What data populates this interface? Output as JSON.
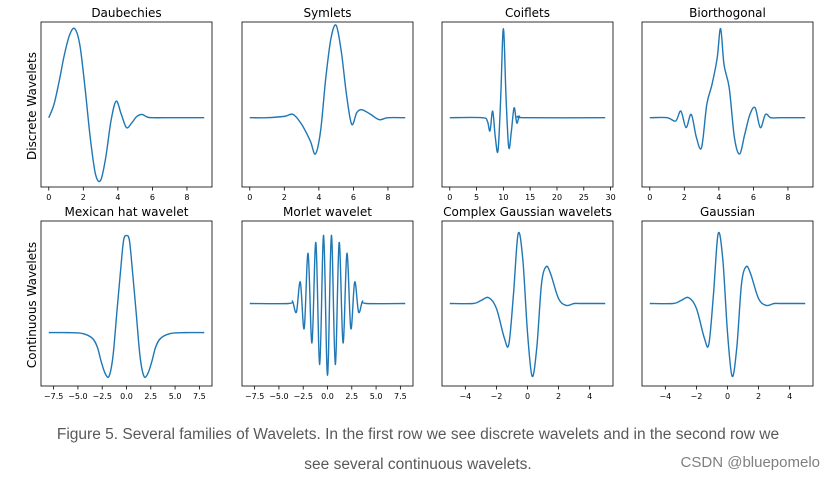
{
  "row_labels": [
    "Discrete Wavelets",
    "Continuous Wavelets"
  ],
  "caption": {
    "line1": "Figure 5. Several families of Wavelets. In the first row we see discrete wavelets and in the second row we",
    "line2": "see several continuous wavelets."
  },
  "watermark": "CSDN @bluepomelo",
  "colors": {
    "line": "#1f77b4",
    "axes": "#000000",
    "caption": "#595959"
  },
  "chart_data": [
    {
      "type": "line",
      "title": "Daubechies",
      "row": 0,
      "col": 0,
      "xlim": [
        -0.45,
        9.45
      ],
      "ylim": [
        -1.05,
        1.45
      ],
      "xticks": [
        0,
        2,
        4,
        6,
        8
      ],
      "tick_labels": [
        "0",
        "2",
        "4",
        "6",
        "8"
      ],
      "x": [
        0,
        0.3,
        0.6,
        0.9,
        1.2,
        1.5,
        1.8,
        2.1,
        2.4,
        2.7,
        3.0,
        3.3,
        3.6,
        3.9,
        4.2,
        4.5,
        4.8,
        5.1,
        5.4,
        5.7,
        6.0,
        7.0,
        8.0,
        9.0
      ],
      "values": [
        0.0,
        0.2,
        0.55,
        0.95,
        1.25,
        1.35,
        1.1,
        0.45,
        -0.3,
        -0.85,
        -0.95,
        -0.6,
        -0.05,
        0.25,
        0.05,
        -0.15,
        -0.08,
        0.02,
        0.05,
        0.01,
        0.0,
        0.0,
        0.0,
        0.0
      ]
    },
    {
      "type": "line",
      "title": "Symlets",
      "row": 0,
      "col": 1,
      "xlim": [
        -0.45,
        9.45
      ],
      "ylim": [
        -1.05,
        1.45
      ],
      "xticks": [
        0,
        2,
        4,
        6,
        8
      ],
      "tick_labels": [
        "0",
        "2",
        "4",
        "6",
        "8"
      ],
      "x": [
        0,
        1.0,
        2.0,
        2.5,
        3.0,
        3.5,
        3.8,
        4.1,
        4.4,
        4.7,
        5.0,
        5.3,
        5.6,
        5.9,
        6.2,
        6.5,
        7.0,
        7.5,
        8.0,
        9.0
      ],
      "values": [
        0.0,
        0.0,
        0.02,
        0.05,
        -0.1,
        -0.35,
        -0.55,
        -0.2,
        0.6,
        1.2,
        1.4,
        1.0,
        0.35,
        -0.1,
        0.08,
        0.12,
        0.05,
        -0.03,
        0.0,
        0.0
      ]
    },
    {
      "type": "line",
      "title": "Coiflets",
      "row": 0,
      "col": 2,
      "xlim": [
        -1.45,
        30.45
      ],
      "ylim": [
        -1.05,
        1.45
      ],
      "xticks": [
        0,
        5,
        10,
        15,
        20,
        25,
        30
      ],
      "tick_labels": [
        "0",
        "5",
        "10",
        "15",
        "20",
        "25",
        "30"
      ],
      "x": [
        0,
        6.0,
        7.0,
        7.5,
        8.0,
        8.5,
        9.0,
        9.5,
        10.0,
        10.5,
        11.0,
        11.5,
        12.0,
        12.5,
        13.0,
        14.0,
        29.0
      ],
      "values": [
        0.0,
        0.0,
        -0.05,
        -0.2,
        0.1,
        -0.3,
        -0.5,
        0.3,
        1.35,
        0.3,
        -0.45,
        -0.2,
        0.15,
        -0.08,
        0.02,
        0.0,
        0.0
      ]
    },
    {
      "type": "line",
      "title": "Biorthogonal",
      "row": 0,
      "col": 3,
      "xlim": [
        -0.45,
        9.45
      ],
      "ylim": [
        -1.05,
        1.45
      ],
      "xticks": [
        0,
        2,
        4,
        6,
        8
      ],
      "tick_labels": [
        "0",
        "2",
        "4",
        "6",
        "8"
      ],
      "x": [
        0,
        1.0,
        1.5,
        1.8,
        2.1,
        2.4,
        2.7,
        3.0,
        3.3,
        3.6,
        3.9,
        4.1,
        4.3,
        4.6,
        4.9,
        5.2,
        5.5,
        5.8,
        6.1,
        6.4,
        6.7,
        7.0,
        7.5,
        8.0,
        9.0
      ],
      "values": [
        0.0,
        0.0,
        -0.05,
        0.1,
        -0.15,
        0.05,
        -0.3,
        -0.45,
        0.2,
        0.5,
        0.9,
        1.35,
        0.8,
        0.45,
        -0.3,
        -0.55,
        -0.25,
        0.05,
        0.15,
        -0.15,
        0.05,
        0.0,
        0.0,
        0.0,
        0.0
      ]
    },
    {
      "type": "line",
      "title": "Mexican hat wavelet",
      "row": 1,
      "col": 0,
      "xlim": [
        -8.8,
        8.8
      ],
      "ylim": [
        -0.55,
        1.15
      ],
      "xticks": [
        -7.5,
        -5.0,
        -2.5,
        0.0,
        2.5,
        5.0,
        7.5
      ],
      "tick_labels": [
        "−7.5",
        "−5.0",
        "−2.5",
        "0.0",
        "2.5",
        "5.0",
        "7.5"
      ],
      "x": [
        -8,
        -6,
        -4.5,
        -3.5,
        -3.0,
        -2.6,
        -2.2,
        -1.8,
        -1.4,
        -1.0,
        -0.6,
        -0.3,
        0,
        0.3,
        0.6,
        1.0,
        1.4,
        1.8,
        2.2,
        2.6,
        3.0,
        3.5,
        4.5,
        6,
        8
      ],
      "values": [
        0.0,
        0.0,
        -0.01,
        -0.06,
        -0.15,
        -0.3,
        -0.42,
        -0.45,
        -0.25,
        0.2,
        0.65,
        0.95,
        1.0,
        0.95,
        0.65,
        0.2,
        -0.25,
        -0.45,
        -0.42,
        -0.3,
        -0.15,
        -0.06,
        -0.01,
        0.0,
        0.0
      ]
    },
    {
      "type": "line",
      "title": "Morlet wavelet",
      "row": 1,
      "col": 1,
      "xlim": [
        -8.8,
        8.8
      ],
      "ylim": [
        -1.15,
        1.15
      ],
      "xticks": [
        -7.5,
        -5.0,
        -2.5,
        0.0,
        2.5,
        5.0,
        7.5
      ],
      "tick_labels": [
        "−7.5",
        "−5.0",
        "−2.5",
        "0.0",
        "2.5",
        "5.0",
        "7.5"
      ],
      "x": [
        -8,
        -4.0,
        -3.6,
        -3.2,
        -2.8,
        -2.4,
        -2.0,
        -1.6,
        -1.2,
        -0.8,
        -0.4,
        0,
        0.4,
        0.8,
        1.2,
        1.6,
        2.0,
        2.4,
        2.8,
        3.2,
        3.6,
        4.0,
        8
      ],
      "values": [
        0.0,
        0.0,
        0.03,
        -0.12,
        0.3,
        -0.35,
        0.7,
        -0.55,
        0.85,
        -0.85,
        0.95,
        -1.0,
        0.95,
        -0.85,
        0.85,
        -0.55,
        0.7,
        -0.35,
        0.3,
        -0.12,
        0.03,
        0.0,
        0.0
      ]
    },
    {
      "type": "line",
      "title": "Complex Gaussian wavelets",
      "row": 1,
      "col": 2,
      "xlim": [
        -5.5,
        5.5
      ],
      "ylim": [
        -0.85,
        0.85
      ],
      "xticks": [
        -4,
        -2,
        0,
        2,
        4
      ],
      "tick_labels": [
        "−4",
        "−2",
        "0",
        "2",
        "4"
      ],
      "x": [
        -5,
        -3.5,
        -3.0,
        -2.5,
        -2.0,
        -1.5,
        -1.2,
        -0.9,
        -0.6,
        -0.3,
        0,
        0.3,
        0.6,
        0.9,
        1.2,
        1.5,
        2.0,
        2.5,
        3.0,
        3.5,
        5
      ],
      "values": [
        0.0,
        0.0,
        0.03,
        0.06,
        -0.05,
        -0.35,
        -0.42,
        0.1,
        0.72,
        0.45,
        -0.3,
        -0.75,
        -0.45,
        0.2,
        0.38,
        0.3,
        0.05,
        -0.02,
        0.0,
        0.0,
        0.0
      ]
    },
    {
      "type": "line",
      "title": "Gaussian",
      "row": 1,
      "col": 3,
      "xlim": [
        -5.5,
        5.5
      ],
      "ylim": [
        -0.85,
        0.85
      ],
      "xticks": [
        -4,
        -2,
        0,
        2,
        4
      ],
      "tick_labels": [
        "−4",
        "−2",
        "0",
        "2",
        "4"
      ],
      "x": [
        -5,
        -3.5,
        -3.0,
        -2.5,
        -2.0,
        -1.5,
        -1.2,
        -0.9,
        -0.6,
        -0.3,
        0,
        0.3,
        0.6,
        0.9,
        1.2,
        1.5,
        2.0,
        2.5,
        3.0,
        3.5,
        5
      ],
      "values": [
        0.0,
        0.0,
        0.03,
        0.06,
        -0.05,
        -0.35,
        -0.42,
        0.1,
        0.72,
        0.45,
        -0.3,
        -0.75,
        -0.45,
        0.2,
        0.38,
        0.3,
        0.05,
        -0.02,
        0.0,
        0.0,
        0.0
      ]
    }
  ]
}
